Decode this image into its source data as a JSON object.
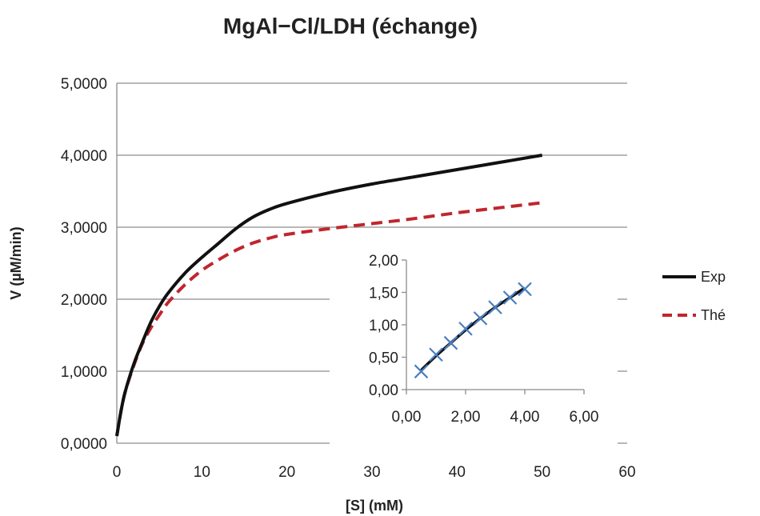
{
  "chart_data": {
    "title": "MgAl−Cl/LDH (échange)",
    "main": {
      "type": "line",
      "xlabel": "[S] (mM)",
      "ylabel": "V (µM/min)",
      "xlim": [
        0,
        60
      ],
      "ylim": [
        0,
        5
      ],
      "xticks": [
        0,
        10,
        20,
        30,
        40,
        50,
        60
      ],
      "xtick_labels": [
        "0",
        "10",
        "20",
        "30",
        "40",
        "50",
        "60"
      ],
      "yticks": [
        0,
        1,
        2,
        3,
        4,
        5
      ],
      "ytick_labels": [
        "0,0000",
        "1,0000",
        "2,0000",
        "3,0000",
        "4,0000",
        "5,0000"
      ],
      "grid": "horizontal",
      "legend_position": "right",
      "series": [
        {
          "name": "Exp",
          "color": "#111111",
          "style": "solid",
          "x": [
            0,
            0.5,
            1,
            2,
            3,
            4,
            5,
            6,
            8,
            10,
            12,
            14,
            16,
            18,
            20,
            25,
            30,
            35,
            40,
            45,
            50
          ],
          "y": [
            0.1,
            0.45,
            0.72,
            1.1,
            1.4,
            1.68,
            1.9,
            2.08,
            2.36,
            2.58,
            2.78,
            2.98,
            3.14,
            3.25,
            3.33,
            3.48,
            3.6,
            3.7,
            3.8,
            3.9,
            4.0
          ]
        },
        {
          "name": "Thé",
          "color": "#c0262d",
          "style": "dashed",
          "x": [
            0,
            0.5,
            1,
            2,
            3,
            4,
            5,
            6,
            8,
            10,
            12,
            14,
            16,
            18,
            20,
            25,
            30,
            35,
            40,
            45,
            50
          ],
          "y": [
            0.1,
            0.45,
            0.72,
            1.08,
            1.38,
            1.6,
            1.78,
            1.95,
            2.2,
            2.4,
            2.55,
            2.68,
            2.78,
            2.85,
            2.9,
            2.98,
            3.05,
            3.12,
            3.2,
            3.27,
            3.34
          ]
        }
      ]
    },
    "inset": {
      "type": "scatter",
      "xlim": [
        0,
        6
      ],
      "ylim": [
        0,
        2
      ],
      "xticks": [
        0,
        2,
        4,
        6
      ],
      "xtick_labels": [
        "0,00",
        "2,00",
        "4,00",
        "6,00"
      ],
      "yticks": [
        0,
        0.5,
        1,
        1.5,
        2
      ],
      "ytick_labels": [
        "0,00",
        "0,50",
        "1,00",
        "1,50",
        "2,00"
      ],
      "marker_color": "#4a7fc1",
      "fit_line_color": "#111111",
      "x": [
        0.5,
        1.0,
        1.5,
        2.0,
        2.5,
        3.0,
        3.5,
        4.0
      ],
      "y": [
        0.28,
        0.54,
        0.72,
        0.94,
        1.1,
        1.27,
        1.42,
        1.55
      ],
      "fit_x": [
        0.5,
        1.0,
        1.5,
        2.0,
        2.5,
        3.0,
        3.5,
        4.0
      ],
      "fit_y": [
        0.3,
        0.52,
        0.72,
        0.92,
        1.1,
        1.27,
        1.42,
        1.57
      ]
    }
  }
}
